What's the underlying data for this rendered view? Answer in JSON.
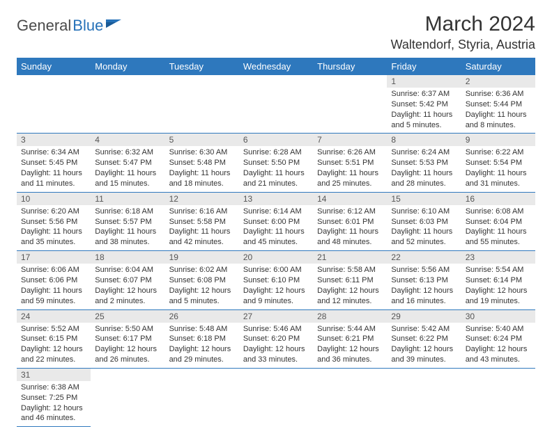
{
  "logo": {
    "part1": "General",
    "part2": "Blue"
  },
  "title": "March 2024",
  "location": "Waltendorf, Styria, Austria",
  "colors": {
    "header_bg": "#2e78bd",
    "header_fg": "#ffffff",
    "daynum_bg": "#e9e9e9",
    "cell_border": "#2e78bd",
    "logo_blue": "#2671b8",
    "logo_gray": "#4a4a4a"
  },
  "weekdays": [
    "Sunday",
    "Monday",
    "Tuesday",
    "Wednesday",
    "Thursday",
    "Friday",
    "Saturday"
  ],
  "weeks": [
    [
      null,
      null,
      null,
      null,
      null,
      {
        "n": "1",
        "sr": "Sunrise: 6:37 AM",
        "ss": "Sunset: 5:42 PM",
        "dl1": "Daylight: 11 hours",
        "dl2": "and 5 minutes."
      },
      {
        "n": "2",
        "sr": "Sunrise: 6:36 AM",
        "ss": "Sunset: 5:44 PM",
        "dl1": "Daylight: 11 hours",
        "dl2": "and 8 minutes."
      }
    ],
    [
      {
        "n": "3",
        "sr": "Sunrise: 6:34 AM",
        "ss": "Sunset: 5:45 PM",
        "dl1": "Daylight: 11 hours",
        "dl2": "and 11 minutes."
      },
      {
        "n": "4",
        "sr": "Sunrise: 6:32 AM",
        "ss": "Sunset: 5:47 PM",
        "dl1": "Daylight: 11 hours",
        "dl2": "and 15 minutes."
      },
      {
        "n": "5",
        "sr": "Sunrise: 6:30 AM",
        "ss": "Sunset: 5:48 PM",
        "dl1": "Daylight: 11 hours",
        "dl2": "and 18 minutes."
      },
      {
        "n": "6",
        "sr": "Sunrise: 6:28 AM",
        "ss": "Sunset: 5:50 PM",
        "dl1": "Daylight: 11 hours",
        "dl2": "and 21 minutes."
      },
      {
        "n": "7",
        "sr": "Sunrise: 6:26 AM",
        "ss": "Sunset: 5:51 PM",
        "dl1": "Daylight: 11 hours",
        "dl2": "and 25 minutes."
      },
      {
        "n": "8",
        "sr": "Sunrise: 6:24 AM",
        "ss": "Sunset: 5:53 PM",
        "dl1": "Daylight: 11 hours",
        "dl2": "and 28 minutes."
      },
      {
        "n": "9",
        "sr": "Sunrise: 6:22 AM",
        "ss": "Sunset: 5:54 PM",
        "dl1": "Daylight: 11 hours",
        "dl2": "and 31 minutes."
      }
    ],
    [
      {
        "n": "10",
        "sr": "Sunrise: 6:20 AM",
        "ss": "Sunset: 5:56 PM",
        "dl1": "Daylight: 11 hours",
        "dl2": "and 35 minutes."
      },
      {
        "n": "11",
        "sr": "Sunrise: 6:18 AM",
        "ss": "Sunset: 5:57 PM",
        "dl1": "Daylight: 11 hours",
        "dl2": "and 38 minutes."
      },
      {
        "n": "12",
        "sr": "Sunrise: 6:16 AM",
        "ss": "Sunset: 5:58 PM",
        "dl1": "Daylight: 11 hours",
        "dl2": "and 42 minutes."
      },
      {
        "n": "13",
        "sr": "Sunrise: 6:14 AM",
        "ss": "Sunset: 6:00 PM",
        "dl1": "Daylight: 11 hours",
        "dl2": "and 45 minutes."
      },
      {
        "n": "14",
        "sr": "Sunrise: 6:12 AM",
        "ss": "Sunset: 6:01 PM",
        "dl1": "Daylight: 11 hours",
        "dl2": "and 48 minutes."
      },
      {
        "n": "15",
        "sr": "Sunrise: 6:10 AM",
        "ss": "Sunset: 6:03 PM",
        "dl1": "Daylight: 11 hours",
        "dl2": "and 52 minutes."
      },
      {
        "n": "16",
        "sr": "Sunrise: 6:08 AM",
        "ss": "Sunset: 6:04 PM",
        "dl1": "Daylight: 11 hours",
        "dl2": "and 55 minutes."
      }
    ],
    [
      {
        "n": "17",
        "sr": "Sunrise: 6:06 AM",
        "ss": "Sunset: 6:06 PM",
        "dl1": "Daylight: 11 hours",
        "dl2": "and 59 minutes."
      },
      {
        "n": "18",
        "sr": "Sunrise: 6:04 AM",
        "ss": "Sunset: 6:07 PM",
        "dl1": "Daylight: 12 hours",
        "dl2": "and 2 minutes."
      },
      {
        "n": "19",
        "sr": "Sunrise: 6:02 AM",
        "ss": "Sunset: 6:08 PM",
        "dl1": "Daylight: 12 hours",
        "dl2": "and 5 minutes."
      },
      {
        "n": "20",
        "sr": "Sunrise: 6:00 AM",
        "ss": "Sunset: 6:10 PM",
        "dl1": "Daylight: 12 hours",
        "dl2": "and 9 minutes."
      },
      {
        "n": "21",
        "sr": "Sunrise: 5:58 AM",
        "ss": "Sunset: 6:11 PM",
        "dl1": "Daylight: 12 hours",
        "dl2": "and 12 minutes."
      },
      {
        "n": "22",
        "sr": "Sunrise: 5:56 AM",
        "ss": "Sunset: 6:13 PM",
        "dl1": "Daylight: 12 hours",
        "dl2": "and 16 minutes."
      },
      {
        "n": "23",
        "sr": "Sunrise: 5:54 AM",
        "ss": "Sunset: 6:14 PM",
        "dl1": "Daylight: 12 hours",
        "dl2": "and 19 minutes."
      }
    ],
    [
      {
        "n": "24",
        "sr": "Sunrise: 5:52 AM",
        "ss": "Sunset: 6:15 PM",
        "dl1": "Daylight: 12 hours",
        "dl2": "and 22 minutes."
      },
      {
        "n": "25",
        "sr": "Sunrise: 5:50 AM",
        "ss": "Sunset: 6:17 PM",
        "dl1": "Daylight: 12 hours",
        "dl2": "and 26 minutes."
      },
      {
        "n": "26",
        "sr": "Sunrise: 5:48 AM",
        "ss": "Sunset: 6:18 PM",
        "dl1": "Daylight: 12 hours",
        "dl2": "and 29 minutes."
      },
      {
        "n": "27",
        "sr": "Sunrise: 5:46 AM",
        "ss": "Sunset: 6:20 PM",
        "dl1": "Daylight: 12 hours",
        "dl2": "and 33 minutes."
      },
      {
        "n": "28",
        "sr": "Sunrise: 5:44 AM",
        "ss": "Sunset: 6:21 PM",
        "dl1": "Daylight: 12 hours",
        "dl2": "and 36 minutes."
      },
      {
        "n": "29",
        "sr": "Sunrise: 5:42 AM",
        "ss": "Sunset: 6:22 PM",
        "dl1": "Daylight: 12 hours",
        "dl2": "and 39 minutes."
      },
      {
        "n": "30",
        "sr": "Sunrise: 5:40 AM",
        "ss": "Sunset: 6:24 PM",
        "dl1": "Daylight: 12 hours",
        "dl2": "and 43 minutes."
      }
    ],
    [
      {
        "n": "31",
        "sr": "Sunrise: 6:38 AM",
        "ss": "Sunset: 7:25 PM",
        "dl1": "Daylight: 12 hours",
        "dl2": "and 46 minutes."
      },
      null,
      null,
      null,
      null,
      null,
      null
    ]
  ]
}
